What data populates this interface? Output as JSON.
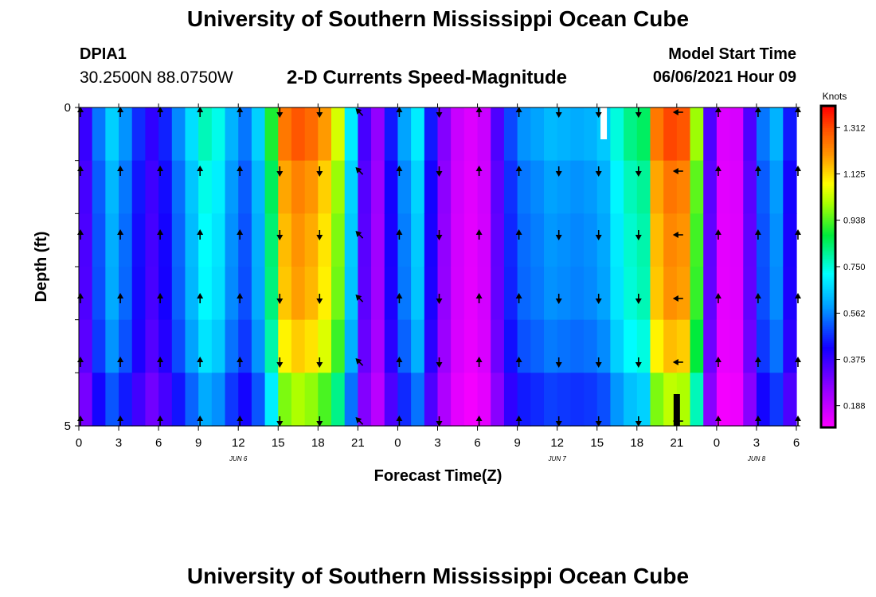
{
  "header": {
    "title": "University of Southern Mississippi Ocean Cube",
    "station_id": "DPIA1",
    "location": "30.2500N  88.0750W",
    "plot_title": "2-D Currents Speed-Magnitude",
    "model_start_label": "Model Start Time",
    "model_start_value": "06/06/2021 Hour 09"
  },
  "footer": {
    "title": "University of Southern Mississippi Ocean Cube"
  },
  "chart_data": {
    "type": "heatmap",
    "title": "2-D Currents Speed-Magnitude",
    "xlabel": "Forecast Time(Z)",
    "ylabel": "Depth (ft)",
    "x_ticks": [
      "0",
      "3",
      "6",
      "9",
      "12",
      "15",
      "18",
      "21",
      "0",
      "3",
      "6",
      "9",
      "12",
      "15",
      "18",
      "21",
      "0",
      "3",
      "6"
    ],
    "date_labels": [
      {
        "label": "JUN 6",
        "tick_index": 4
      },
      {
        "label": "JUN 7",
        "tick_index": 12
      },
      {
        "label": "JUN 8",
        "tick_index": 17
      }
    ],
    "y_ticks": [
      "0",
      "5"
    ],
    "ylim": [
      0,
      5
    ],
    "xlim_hours": [
      0,
      54
    ],
    "colorbar": {
      "unit": "Knots",
      "ticks": [
        "1.312",
        "1.125",
        "0.938",
        "0.750",
        "0.562",
        "0.375",
        "0.188"
      ],
      "range": [
        0.1,
        1.4
      ]
    },
    "time_hours": [
      0,
      1,
      2,
      3,
      4,
      5,
      6,
      7,
      8,
      9,
      10,
      11,
      12,
      13,
      14,
      15,
      16,
      17,
      18,
      19,
      20,
      21,
      22,
      23,
      24,
      25,
      26,
      27,
      28,
      29,
      30,
      31,
      32,
      33,
      34,
      35,
      36,
      37,
      38,
      39,
      40,
      41,
      42,
      43,
      44,
      45,
      46,
      47,
      48,
      49,
      50,
      51,
      52,
      53
    ],
    "speed_profile": [
      0.38,
      0.55,
      0.66,
      0.58,
      0.47,
      0.39,
      0.46,
      0.57,
      0.68,
      0.78,
      0.74,
      0.62,
      0.55,
      0.66,
      0.9,
      1.25,
      1.3,
      1.27,
      1.2,
      1.05,
      0.7,
      0.36,
      0.26,
      0.45,
      0.6,
      0.7,
      0.45,
      0.28,
      0.18,
      0.15,
      0.18,
      0.35,
      0.5,
      0.58,
      0.6,
      0.63,
      0.62,
      0.61,
      0.62,
      0.65,
      0.75,
      0.82,
      0.85,
      1.25,
      1.32,
      1.3,
      1.0,
      0.35,
      0.15,
      0.16,
      0.35,
      0.55,
      0.62,
      0.45
    ],
    "depth_factor": [
      1.0,
      0.95,
      0.93,
      0.92,
      0.88,
      0.78
    ],
    "arrow_hours": [
      0,
      3,
      6,
      9,
      12,
      15,
      18,
      21,
      24,
      27,
      30,
      33,
      36,
      39,
      42,
      45,
      48,
      51,
      54
    ],
    "arrow_depth_rows": [
      0.0,
      1.0,
      2.0,
      3.0,
      4.0,
      5.0
    ],
    "arrow_dirs": [
      "N",
      "N",
      "N",
      "N",
      "N",
      "S",
      "S",
      "NW",
      "N",
      "S",
      "N",
      "N",
      "S",
      "S",
      "S",
      "W",
      "N",
      "N",
      "N"
    ],
    "missing_cells": [
      {
        "hour": 39.5,
        "depth_from": 0.0,
        "depth_to": 0.5,
        "color": "#ffffff"
      },
      {
        "hour": 45.0,
        "depth_from": 4.5,
        "depth_to": 5.0,
        "color": "#000000"
      }
    ]
  }
}
